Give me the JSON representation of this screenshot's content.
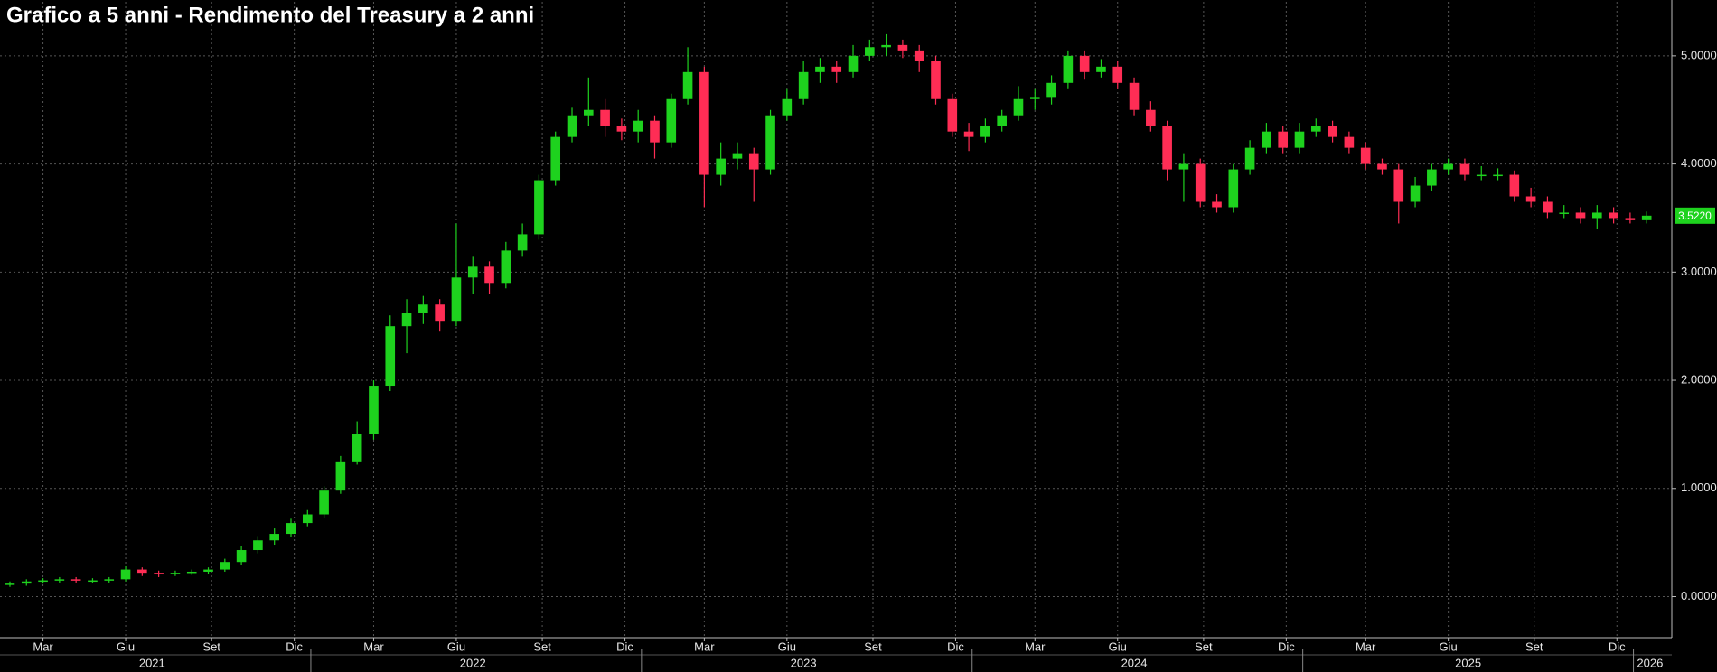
{
  "chart_data": {
    "type": "candlestick",
    "title": "Grafico a 5 anni - Rendimento del Treasury a 2 anni",
    "x": [
      2021.09,
      2021.14,
      2021.19,
      2021.24,
      2021.29,
      2021.34,
      2021.39,
      2021.44,
      2021.49,
      2021.54,
      2021.59,
      2021.64,
      2021.69,
      2021.74,
      2021.79,
      2021.84,
      2021.89,
      2021.94,
      2021.99,
      2022.04,
      2022.09,
      2022.14,
      2022.19,
      2022.24,
      2022.29,
      2022.34,
      2022.39,
      2022.44,
      2022.49,
      2022.54,
      2022.59,
      2022.64,
      2022.69,
      2022.74,
      2022.79,
      2022.84,
      2022.89,
      2022.94,
      2022.99,
      2023.04,
      2023.09,
      2023.14,
      2023.19,
      2023.24,
      2023.29,
      2023.34,
      2023.39,
      2023.44,
      2023.49,
      2023.54,
      2023.59,
      2023.64,
      2023.69,
      2023.74,
      2023.79,
      2023.84,
      2023.89,
      2023.94,
      2023.99,
      2024.04,
      2024.09,
      2024.14,
      2024.19,
      2024.24,
      2024.29,
      2024.34,
      2024.39,
      2024.44,
      2024.49,
      2024.54,
      2024.59,
      2024.64,
      2024.69,
      2024.74,
      2024.79,
      2024.84,
      2024.89,
      2024.94,
      2024.99,
      2025.04,
      2025.09,
      2025.14,
      2025.19,
      2025.24,
      2025.29,
      2025.34,
      2025.39,
      2025.44,
      2025.49,
      2025.54,
      2025.59,
      2025.64,
      2025.69,
      2025.74,
      2025.79,
      2025.84,
      2025.89,
      2025.94,
      2025.99,
      2026.04
    ],
    "open": [
      0.11,
      0.12,
      0.14,
      0.15,
      0.16,
      0.15,
      0.15,
      0.16,
      0.25,
      0.22,
      0.21,
      0.22,
      0.23,
      0.25,
      0.32,
      0.43,
      0.52,
      0.58,
      0.68,
      0.76,
      0.98,
      1.25,
      1.5,
      1.95,
      2.5,
      2.62,
      2.7,
      2.55,
      2.95,
      3.05,
      2.9,
      3.2,
      3.35,
      3.85,
      4.25,
      4.45,
      4.5,
      4.35,
      4.3,
      4.4,
      4.2,
      4.6,
      4.85,
      3.9,
      4.05,
      4.1,
      3.95,
      4.45,
      4.6,
      4.85,
      4.9,
      4.85,
      5.0,
      5.08,
      5.1,
      5.05,
      4.95,
      4.6,
      4.3,
      4.25,
      4.35,
      4.45,
      4.6,
      4.62,
      4.75,
      5.0,
      4.85,
      4.9,
      4.75,
      4.5,
      4.35,
      3.95,
      4.0,
      3.65,
      3.6,
      3.95,
      4.15,
      4.3,
      4.15,
      4.3,
      4.35,
      4.25,
      4.15,
      4.0,
      3.95,
      3.65,
      3.8,
      3.95,
      4.0,
      3.9,
      3.9,
      3.9,
      3.7,
      3.65,
      3.55,
      3.55,
      3.5,
      3.55,
      3.5,
      3.48
    ],
    "high": [
      0.14,
      0.16,
      0.17,
      0.18,
      0.18,
      0.17,
      0.18,
      0.28,
      0.27,
      0.24,
      0.24,
      0.25,
      0.27,
      0.35,
      0.47,
      0.56,
      0.63,
      0.72,
      0.8,
      1.02,
      1.3,
      1.62,
      2.0,
      2.6,
      2.75,
      2.78,
      2.75,
      3.45,
      3.15,
      3.1,
      3.28,
      3.45,
      3.9,
      4.3,
      4.52,
      4.8,
      4.6,
      4.42,
      4.5,
      4.45,
      4.65,
      5.08,
      4.9,
      4.2,
      4.2,
      4.15,
      4.5,
      4.7,
      4.95,
      4.98,
      4.95,
      5.1,
      5.15,
      5.2,
      5.15,
      5.1,
      5.0,
      4.65,
      4.38,
      4.42,
      4.5,
      4.72,
      4.7,
      4.82,
      5.05,
      5.05,
      4.97,
      4.95,
      4.8,
      4.58,
      4.4,
      4.1,
      4.05,
      3.72,
      4.0,
      4.22,
      4.38,
      4.35,
      4.38,
      4.42,
      4.4,
      4.3,
      4.2,
      4.05,
      4.0,
      3.88,
      4.0,
      4.05,
      4.05,
      3.98,
      3.96,
      3.94,
      3.78,
      3.7,
      3.62,
      3.6,
      3.62,
      3.6,
      3.55,
      3.56
    ],
    "low": [
      0.09,
      0.1,
      0.12,
      0.13,
      0.13,
      0.13,
      0.13,
      0.14,
      0.19,
      0.18,
      0.19,
      0.2,
      0.21,
      0.23,
      0.29,
      0.4,
      0.48,
      0.55,
      0.65,
      0.73,
      0.95,
      1.22,
      1.45,
      1.9,
      2.25,
      2.52,
      2.45,
      2.5,
      2.8,
      2.8,
      2.85,
      3.15,
      3.3,
      3.8,
      4.2,
      4.35,
      4.25,
      4.22,
      4.2,
      4.05,
      4.15,
      4.55,
      3.6,
      3.8,
      3.95,
      3.65,
      3.9,
      4.4,
      4.55,
      4.75,
      4.75,
      4.8,
      4.95,
      5.0,
      4.98,
      4.85,
      4.55,
      4.25,
      4.12,
      4.2,
      4.3,
      4.4,
      4.5,
      4.55,
      4.7,
      4.78,
      4.8,
      4.7,
      4.45,
      4.3,
      3.85,
      3.65,
      3.6,
      3.55,
      3.55,
      3.9,
      4.1,
      4.1,
      4.1,
      4.25,
      4.2,
      4.1,
      3.95,
      3.9,
      3.45,
      3.6,
      3.75,
      3.9,
      3.85,
      3.85,
      3.85,
      3.65,
      3.6,
      3.5,
      3.5,
      3.45,
      3.4,
      3.45,
      3.45,
      3.45
    ],
    "close": [
      0.12,
      0.14,
      0.15,
      0.16,
      0.15,
      0.15,
      0.16,
      0.25,
      0.22,
      0.21,
      0.22,
      0.23,
      0.25,
      0.32,
      0.43,
      0.52,
      0.58,
      0.68,
      0.76,
      0.98,
      1.25,
      1.5,
      1.95,
      2.5,
      2.62,
      2.7,
      2.55,
      2.95,
      3.05,
      2.9,
      3.2,
      3.35,
      3.85,
      4.25,
      4.45,
      4.5,
      4.35,
      4.3,
      4.4,
      4.2,
      4.6,
      4.85,
      3.9,
      4.05,
      4.1,
      3.95,
      4.45,
      4.6,
      4.85,
      4.9,
      4.85,
      5.0,
      5.08,
      5.1,
      5.05,
      4.95,
      4.6,
      4.3,
      4.25,
      4.35,
      4.45,
      4.6,
      4.62,
      4.75,
      5.0,
      4.85,
      4.9,
      4.75,
      4.5,
      4.35,
      3.95,
      4.0,
      3.65,
      3.6,
      3.95,
      4.15,
      4.3,
      4.15,
      4.3,
      4.35,
      4.25,
      4.15,
      4.0,
      3.95,
      3.65,
      3.8,
      3.95,
      4.0,
      3.9,
      3.9,
      3.9,
      3.7,
      3.65,
      3.55,
      3.55,
      3.5,
      3.55,
      3.5,
      3.48,
      3.522
    ],
    "last_label": "3.5220",
    "up_color": "#1ed21e",
    "down_color": "#ff2d55",
    "xlim": [
      2021.06,
      2026.116
    ],
    "ylim": [
      -0.38,
      5.5
    ],
    "yticks": [
      {
        "value": 0,
        "label": "0.0000"
      },
      {
        "value": 1,
        "label": "1.0000"
      },
      {
        "value": 2,
        "label": "2.0000"
      },
      {
        "value": 3,
        "label": "3.0000"
      },
      {
        "value": 4,
        "label": "4.0000"
      },
      {
        "value": 5,
        "label": "5.0000"
      }
    ],
    "xticks": [
      {
        "value": 2021.19,
        "label": "Mar"
      },
      {
        "value": 2021.44,
        "label": "Giu"
      },
      {
        "value": 2021.7,
        "label": "Set"
      },
      {
        "value": 2021.95,
        "label": "Dic"
      },
      {
        "value": 2022.19,
        "label": "Mar"
      },
      {
        "value": 2022.44,
        "label": "Giu"
      },
      {
        "value": 2022.7,
        "label": "Set"
      },
      {
        "value": 2022.95,
        "label": "Dic"
      },
      {
        "value": 2023.19,
        "label": "Mar"
      },
      {
        "value": 2023.44,
        "label": "Giu"
      },
      {
        "value": 2023.7,
        "label": "Set"
      },
      {
        "value": 2023.95,
        "label": "Dic"
      },
      {
        "value": 2024.19,
        "label": "Mar"
      },
      {
        "value": 2024.44,
        "label": "Giu"
      },
      {
        "value": 2024.7,
        "label": "Set"
      },
      {
        "value": 2024.95,
        "label": "Dic"
      },
      {
        "value": 2025.19,
        "label": "Mar"
      },
      {
        "value": 2025.44,
        "label": "Giu"
      },
      {
        "value": 2025.7,
        "label": "Set"
      },
      {
        "value": 2025.95,
        "label": "Dic"
      }
    ],
    "year_ticks": [
      {
        "value": 2021.52,
        "label": "2021"
      },
      {
        "value": 2022.49,
        "label": "2022"
      },
      {
        "value": 2023.49,
        "label": "2023"
      },
      {
        "value": 2024.49,
        "label": "2024"
      },
      {
        "value": 2025.5,
        "label": "2025"
      },
      {
        "value": 2026.05,
        "label": "2026"
      }
    ],
    "year_boundaries": [
      2022,
      2023,
      2024,
      2025,
      2026
    ],
    "grid": true
  }
}
